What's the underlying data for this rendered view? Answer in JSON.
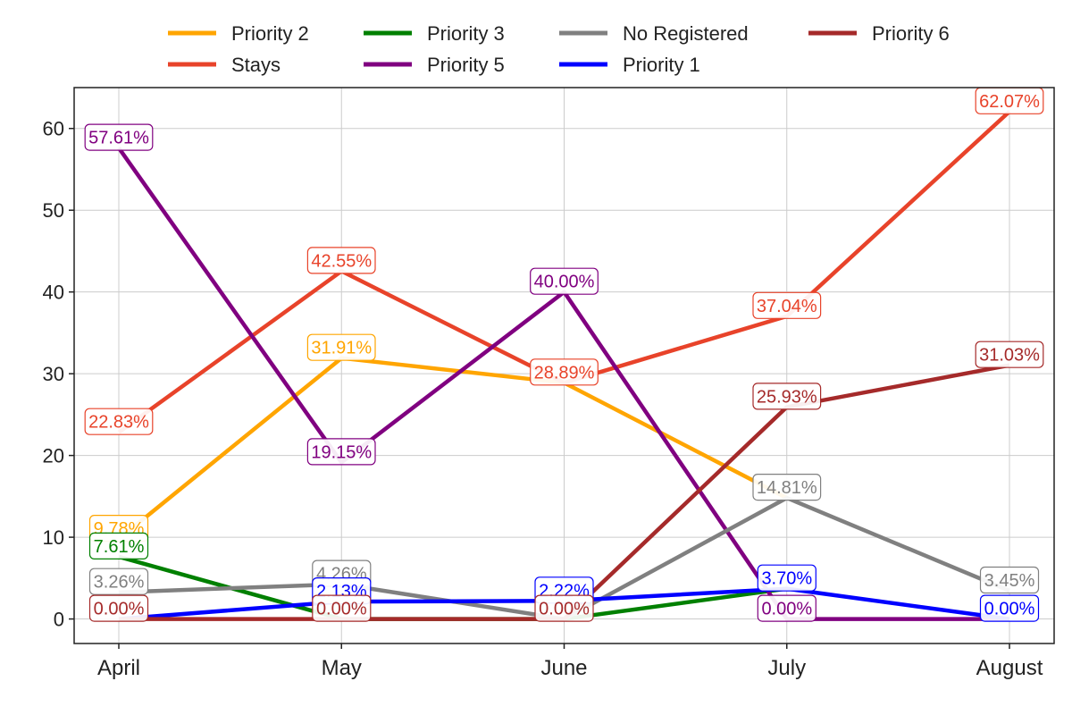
{
  "chart_data": {
    "type": "line",
    "title": "",
    "xlabel": "",
    "ylabel": "",
    "categories": [
      "April",
      "May",
      "June",
      "July",
      "August"
    ],
    "ylim": [
      -3,
      65
    ],
    "yticks": [
      0,
      10,
      20,
      30,
      40,
      50,
      60
    ],
    "grid": true,
    "legend_position": "top-center",
    "series": [
      {
        "name": "Priority 2",
        "color": "#FFA500",
        "values": [
          9.78,
          31.91,
          28.89,
          14.81,
          null
        ],
        "labels": [
          "9.78%",
          "31.91%",
          "",
          "",
          ""
        ]
      },
      {
        "name": "Stays",
        "color": "#E8432A",
        "values": [
          22.83,
          42.55,
          28.89,
          37.04,
          62.07
        ],
        "labels": [
          "22.83%",
          "42.55%",
          "28.89%",
          "37.04%",
          "62.07%"
        ]
      },
      {
        "name": "Priority 3",
        "color": "#008000",
        "values": [
          7.61,
          0.0,
          0.0,
          3.7,
          null
        ],
        "labels": [
          "7.61%",
          "",
          "",
          "",
          ""
        ]
      },
      {
        "name": "Priority 5",
        "color": "#800080",
        "values": [
          57.61,
          19.15,
          40.0,
          0.0,
          0.0
        ],
        "labels": [
          "57.61%",
          "19.15%",
          "40.00%",
          "0.00%",
          ""
        ]
      },
      {
        "name": "No Registered",
        "color": "#808080",
        "values": [
          3.26,
          4.26,
          0.0,
          14.81,
          3.45
        ],
        "labels": [
          "3.26%",
          "4.26%",
          "",
          "14.81%",
          "3.45%"
        ]
      },
      {
        "name": "Priority 1",
        "color": "#0000FF",
        "values": [
          0.0,
          2.13,
          2.22,
          3.7,
          0.0
        ],
        "labels": [
          "",
          "2.13%",
          "2.22%",
          "3.70%",
          "0.00%"
        ]
      },
      {
        "name": "Priority 6",
        "color": "#A52A2A",
        "values": [
          0.0,
          0.0,
          0.0,
          25.93,
          31.03
        ],
        "labels": [
          "0.00%",
          "0.00%",
          "0.00%",
          "25.93%",
          "31.03%"
        ]
      }
    ],
    "legend_order": [
      "Priority 2",
      "Priority 3",
      "No Registered",
      "Priority 6",
      "Stays",
      "Priority 5",
      "Priority 1"
    ]
  }
}
